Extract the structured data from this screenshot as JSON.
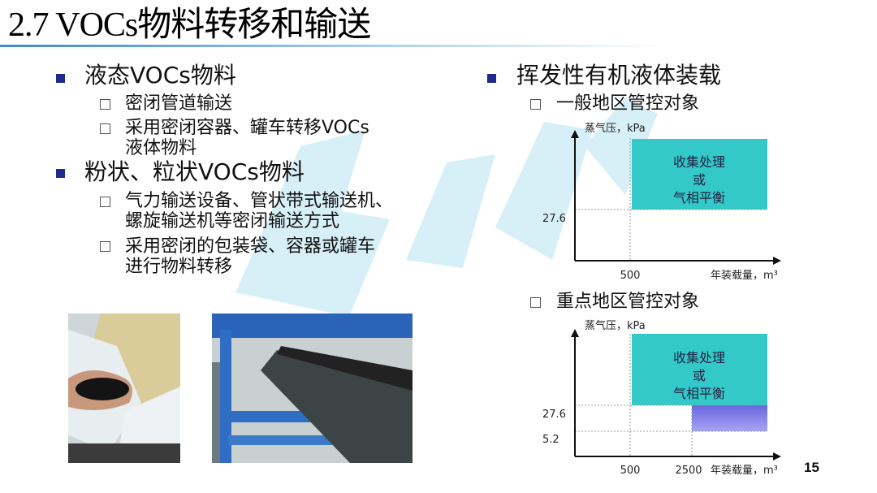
{
  "title": "2.7 VOCs物料转移和输送",
  "left": {
    "sections": [
      {
        "label": "液态VOCs物料",
        "items": [
          [
            "密闭管道输送"
          ],
          [
            "采用密闭容器、罐车转移VOCs",
            "液体物料"
          ]
        ]
      },
      {
        "label": "粉状、粒状VOCs物料",
        "items": [
          [
            "气力输送设备、管状带式输送机、",
            "螺旋输送机等密闭输送方式"
          ],
          [
            "采用密闭的包装袋、容器或罐车",
            "进行物料转移"
          ]
        ]
      }
    ]
  },
  "right": {
    "label": "挥发性有机液体装载",
    "diagrams": [
      {
        "heading": "一般地区管控对象",
        "ylabel": "蒸气压，kPa",
        "xlabel": "年装载量，m³",
        "yticks": [
          "27.6"
        ],
        "xticks": [
          "500"
        ],
        "region_lines": [
          "收集处理",
          "或",
          "气相平衡"
        ],
        "colors": {
          "region": "#33c9c9"
        }
      },
      {
        "heading": "重点地区管控对象",
        "ylabel": "蒸气压，kPa",
        "xlabel": "年装载量，m³",
        "yticks": [
          "27.6",
          "5.2"
        ],
        "xticks": [
          "500",
          "2500"
        ],
        "region_lines": [
          "收集处理",
          "或",
          "气相平衡"
        ],
        "colors": {
          "region": "#33c9c9",
          "secondary_region": "#8a88ee"
        }
      }
    ]
  },
  "page_number": "15"
}
